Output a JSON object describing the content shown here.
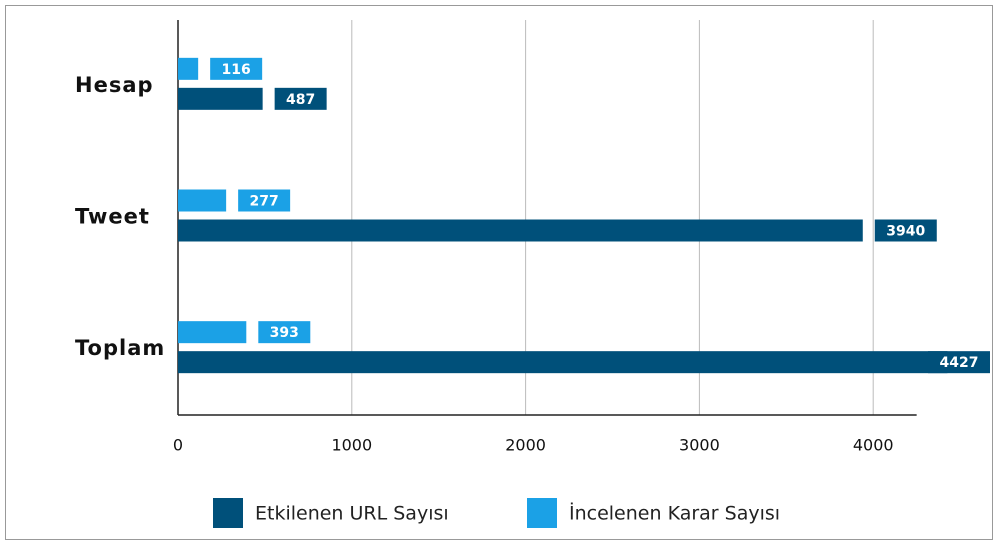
{
  "chart_data": {
    "type": "bar",
    "orientation": "horizontal",
    "categories": [
      "Hesap",
      "Tweet",
      "Toplam"
    ],
    "series": [
      {
        "name": "İncelenen Karar Sayısı",
        "color": "#1ba1e6",
        "values": [
          116,
          277,
          393
        ]
      },
      {
        "name": "Etkilenen URL Sayısı",
        "color": "#00507a",
        "values": [
          487,
          3940,
          4427
        ]
      }
    ],
    "legend_order": [
      1,
      0
    ],
    "xlim": [
      0,
      4250
    ],
    "xticks": [
      0,
      1000,
      2000,
      3000,
      4000
    ],
    "grid": true
  }
}
